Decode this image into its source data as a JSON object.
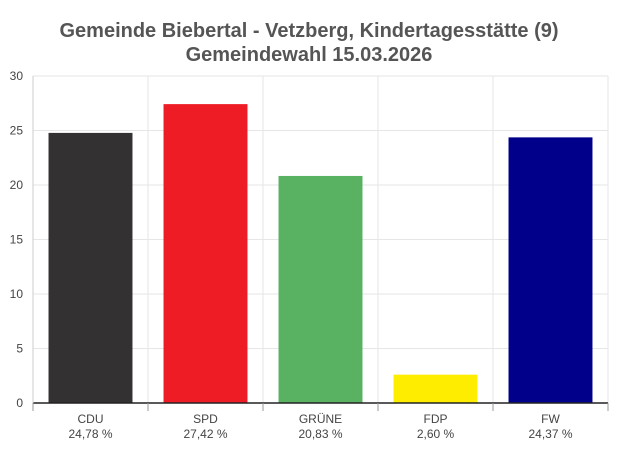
{
  "chart_data": {
    "type": "bar",
    "title_lines": [
      "Gemeinde Biebertal - Vetzberg, Kindertagesstätte (9)",
      "Gemeindewahl 15.03.2026"
    ],
    "categories": [
      "CDU",
      "SPD",
      "GRÜNE",
      "FDP",
      "FW"
    ],
    "values": [
      24.78,
      27.42,
      20.83,
      2.6,
      24.37
    ],
    "value_labels": [
      "24,78 %",
      "27,42 %",
      "20,83 %",
      "2,60 %",
      "24,37 %"
    ],
    "colors": [
      "#333132",
      "#EE1C25",
      "#58B261",
      "#FFED00",
      "#00008B"
    ],
    "ylim": [
      0,
      30
    ],
    "yticks": [
      "0",
      "5",
      "10",
      "15",
      "20",
      "25",
      "30"
    ],
    "xlabel": "",
    "ylabel": "",
    "grid": true,
    "legend": "none"
  }
}
